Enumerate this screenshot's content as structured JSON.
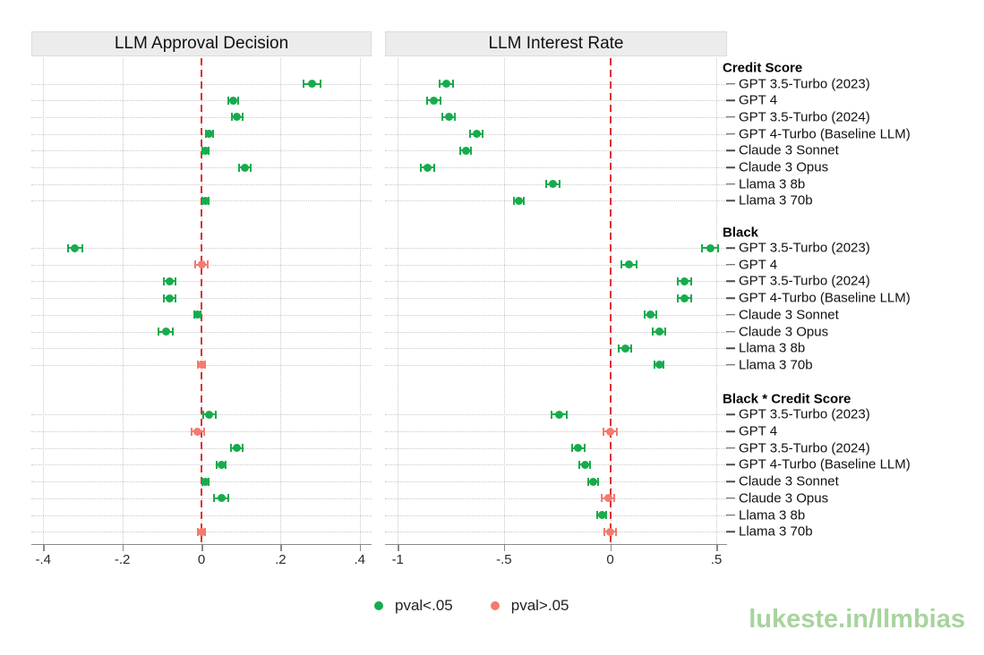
{
  "page": {
    "watermark": "lukeste.in/llmbias"
  },
  "legend": {
    "items": [
      {
        "label": "pval<.05",
        "significant": true
      },
      {
        "label": "pval>.05",
        "significant": false
      }
    ]
  },
  "colors": {
    "significant": "#18ab4d",
    "not_significant": "#f37b6f",
    "zero_line": "#dd3232",
    "grid": "#c9c9c9",
    "strip_bg": "#ececec",
    "text": "#1a1a1a",
    "axis": "#8a8a8a",
    "watermark": "#a8d39e"
  },
  "chart_data": {
    "type": "scatter",
    "subtype": "coefficient-forest-plot",
    "group_labels": [
      "Credit Score",
      "Black",
      "Black * Credit Score"
    ],
    "models": [
      "GPT 3.5-Turbo (2023)",
      "GPT 4",
      "GPT 3.5-Turbo (2024)",
      "GPT 4-Turbo (Baseline LLM)",
      "Claude 3 Sonnet",
      "Claude 3 Opus",
      "Llama 3 8b",
      "Llama 3 70b"
    ],
    "panels": [
      {
        "title": "LLM Approval Decision",
        "xlim": [
          -0.43,
          0.43
        ],
        "xtick_values": [
          -0.4,
          -0.2,
          0,
          0.2,
          0.4
        ],
        "xticks": [
          "-.4",
          "-.2",
          "0",
          ".2",
          ".4"
        ],
        "zero_line": 0,
        "groups": [
          {
            "group": "Credit Score",
            "estimates": [
              0.28,
              0.08,
              0.09,
              0.02,
              0.01,
              0.11,
              null,
              0.01
            ],
            "ci_half": [
              0.021,
              0.013,
              0.013,
              0.009,
              0.007,
              0.014,
              null,
              0.007
            ],
            "significant": [
              true,
              true,
              true,
              true,
              true,
              true,
              null,
              true
            ]
          },
          {
            "group": "Black",
            "estimates": [
              -0.32,
              0.0,
              -0.08,
              -0.08,
              -0.01,
              -0.09,
              null,
              0.0
            ],
            "ci_half": [
              0.018,
              0.016,
              0.014,
              0.014,
              0.008,
              0.018,
              null,
              0.01
            ],
            "significant": [
              true,
              false,
              true,
              true,
              true,
              true,
              null,
              false
            ]
          },
          {
            "group": "Black * Credit Score",
            "estimates": [
              0.02,
              -0.01,
              0.09,
              0.05,
              0.01,
              0.05,
              null,
              0.0
            ],
            "ci_half": [
              0.016,
              0.016,
              0.015,
              0.012,
              0.008,
              0.019,
              null,
              0.01
            ],
            "significant": [
              true,
              false,
              true,
              true,
              true,
              true,
              null,
              false
            ]
          }
        ]
      },
      {
        "title": "LLM Interest Rate",
        "xlim": [
          -1.06,
          0.55
        ],
        "xtick_values": [
          -1,
          -0.5,
          0,
          0.5
        ],
        "xticks": [
          "-1",
          "-.5",
          "0",
          ".5"
        ],
        "zero_line": 0,
        "groups": [
          {
            "group": "Credit Score",
            "estimates": [
              -0.77,
              -0.83,
              -0.76,
              -0.63,
              -0.68,
              -0.86,
              -0.27,
              -0.43
            ],
            "ci_half": [
              0.032,
              0.03,
              0.03,
              0.028,
              0.025,
              0.03,
              0.03,
              0.022
            ],
            "significant": [
              true,
              true,
              true,
              true,
              true,
              true,
              true,
              true
            ]
          },
          {
            "group": "Black",
            "estimates": [
              0.47,
              0.09,
              0.35,
              0.35,
              0.19,
              0.23,
              0.07,
              0.23
            ],
            "ci_half": [
              0.038,
              0.036,
              0.032,
              0.032,
              0.026,
              0.028,
              0.03,
              0.022
            ],
            "significant": [
              true,
              true,
              true,
              true,
              true,
              true,
              true,
              true
            ]
          },
          {
            "group": "Black * Credit Score",
            "estimates": [
              -0.24,
              0.0,
              -0.15,
              -0.12,
              -0.08,
              -0.01,
              -0.04,
              0.0
            ],
            "ci_half": [
              0.036,
              0.032,
              0.03,
              0.026,
              0.022,
              0.028,
              0.022,
              0.026
            ],
            "significant": [
              true,
              false,
              true,
              true,
              true,
              false,
              true,
              false
            ]
          }
        ]
      }
    ]
  }
}
